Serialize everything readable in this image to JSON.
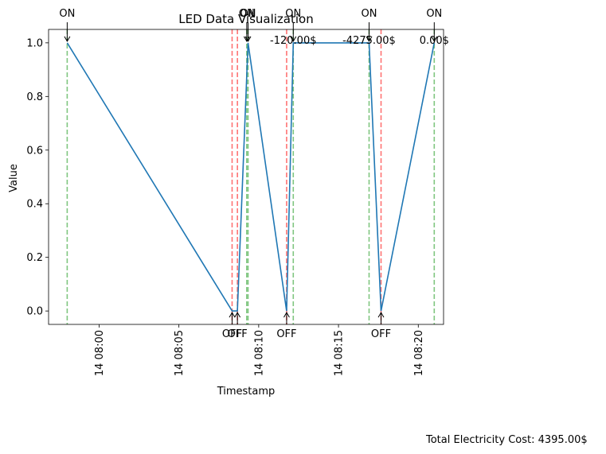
{
  "chart_data": {
    "type": "line",
    "title": "LED Data Visualization",
    "xlabel": "Timestamp",
    "ylabel": "Value",
    "ylim": [
      -0.05,
      1.05
    ],
    "xlim": [
      "07:56:50",
      "08:21:35"
    ],
    "y_ticks": [
      "0.0",
      "0.2",
      "0.4",
      "0.6",
      "0.8",
      "1.0"
    ],
    "x_ticks": [
      {
        "t": "08:00:00",
        "label": "14 08:00"
      },
      {
        "t": "08:05:00",
        "label": "14 08:05"
      },
      {
        "t": "08:10:00",
        "label": "14 08:10"
      },
      {
        "t": "08:15:00",
        "label": "14 08:15"
      },
      {
        "t": "08:20:00",
        "label": "14 08:20"
      }
    ],
    "series": [
      {
        "color": "#1f77b4",
        "points": [
          {
            "t": "07:58:00",
            "v": 1
          },
          {
            "t": "08:08:20",
            "v": 0
          },
          {
            "t": "08:08:40",
            "v": 0
          },
          {
            "t": "08:09:20",
            "v": 1
          },
          {
            "t": "08:11:45",
            "v": 0
          },
          {
            "t": "08:12:10",
            "v": 1
          },
          {
            "t": "08:16:55",
            "v": 1
          },
          {
            "t": "08:17:40",
            "v": 0
          },
          {
            "t": "08:21:00",
            "v": 1
          }
        ]
      }
    ],
    "on_events": [
      "07:58:00",
      "08:09:15",
      "08:09:20",
      "08:12:10",
      "08:16:55",
      "08:21:00"
    ],
    "off_events": [
      "08:08:20",
      "08:08:40",
      "08:11:45",
      "08:17:40"
    ],
    "on_color": "#2ca02c",
    "off_color": "#ff0000",
    "on_label": "ON",
    "off_label": "OFF",
    "cost_labels": [
      {
        "t": "08:12:10",
        "v": 1.0,
        "text": "-120.00$"
      },
      {
        "t": "08:16:55",
        "v": 1.0,
        "text": "-4275.00$"
      },
      {
        "t": "08:21:00",
        "v": 1.0,
        "text": "0.00$"
      }
    ],
    "total_cost_text": "Total Electricity Cost: 4395.00$"
  }
}
